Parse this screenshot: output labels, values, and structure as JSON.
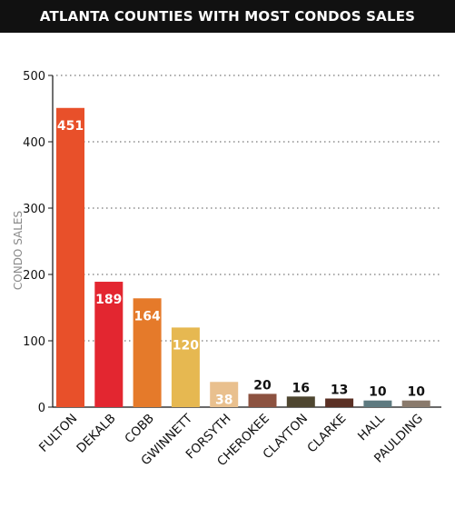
{
  "chart_data": {
    "type": "bar",
    "title": "ATLANTA COUNTIES WITH MOST CONDOS SALES",
    "ylabel": "CONDO SALES",
    "xlabel": "",
    "ylim": [
      0,
      500
    ],
    "yticks": [
      0,
      100,
      200,
      300,
      400,
      500
    ],
    "grid": "horizontal dotted",
    "categories": [
      "FULTON",
      "DEKALB",
      "COBB",
      "GWINNETT",
      "FORSYTH",
      "CHEROKEE",
      "CLAYTON",
      "CLARKE",
      "HALL",
      "PAULDING"
    ],
    "values": [
      451,
      189,
      164,
      120,
      38,
      20,
      16,
      13,
      10,
      10
    ],
    "colors": [
      "#e8502a",
      "#e32630",
      "#e57a2a",
      "#e6b851",
      "#e9c08e",
      "#8c5240",
      "#4e4630",
      "#5a3024",
      "#5e7a80",
      "#8a7a6c"
    ],
    "label_colors": [
      "#ffffff",
      "#ffffff",
      "#ffffff",
      "#ffffff",
      "#ffffff",
      "#111111",
      "#111111",
      "#111111",
      "#111111",
      "#111111"
    ]
  }
}
